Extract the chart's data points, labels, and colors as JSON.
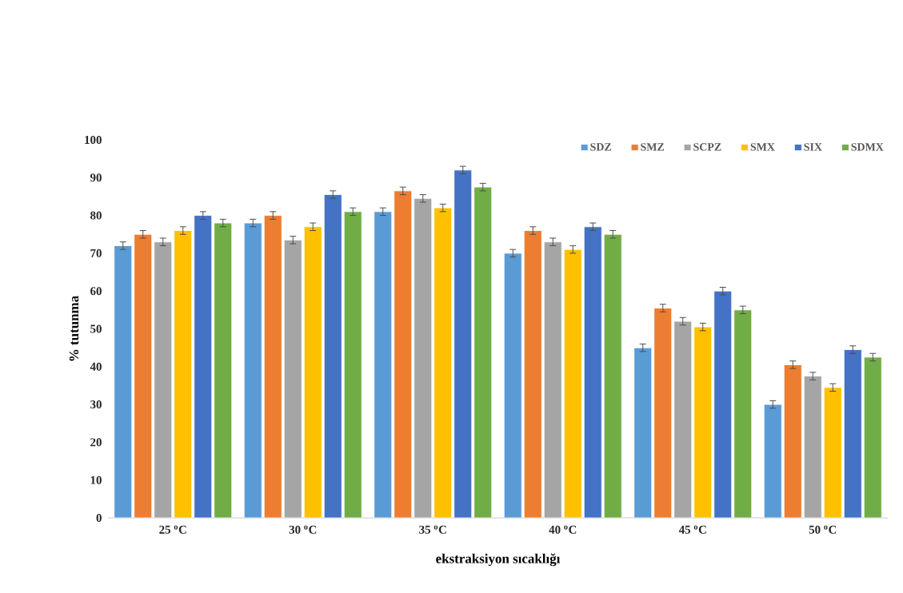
{
  "chart_data": {
    "type": "bar",
    "xlabel": "ekstraksiyon sıcaklığı",
    "ylabel": "% tutunma",
    "categories": [
      "25 $^{o}$C",
      "30 $^{o}$C",
      "35 $^{o}$C",
      "40 $^{o}$C",
      "45 $^{o}$C",
      "50 $^{o}$C"
    ],
    "series": [
      {
        "name": "SDZ",
        "color": "#5b9bd5",
        "values": [
          72,
          78,
          81,
          70,
          45,
          30
        ],
        "errors": [
          1,
          1,
          1,
          1,
          1,
          1
        ]
      },
      {
        "name": "SMZ",
        "color": "#ed7d31",
        "values": [
          75,
          80,
          86.5,
          76,
          55.5,
          40.5
        ],
        "errors": [
          1,
          1,
          1,
          1,
          1,
          1
        ]
      },
      {
        "name": "SCPZ",
        "color": "#a5a5a5",
        "values": [
          73,
          73.5,
          84.5,
          73,
          52,
          37.5
        ],
        "errors": [
          1,
          1,
          1,
          1,
          1,
          1
        ]
      },
      {
        "name": "SMX",
        "color": "#ffc000",
        "values": [
          76,
          77,
          82,
          71,
          50.5,
          34.5
        ],
        "errors": [
          1,
          1,
          1,
          1,
          1,
          1
        ]
      },
      {
        "name": "SIX",
        "color": "#4472c4",
        "values": [
          80,
          85.5,
          92,
          77,
          60,
          44.5
        ],
        "errors": [
          1,
          1,
          1,
          1,
          1,
          1
        ]
      },
      {
        "name": "SDMX",
        "color": "#70ad47",
        "values": [
          78,
          81,
          87.5,
          75,
          55,
          42.5
        ],
        "errors": [
          1,
          1,
          1,
          1,
          1,
          1
        ]
      }
    ],
    "ylim": [
      0,
      100
    ],
    "yticks": [
      0,
      10,
      20,
      30,
      40,
      50,
      60,
      70,
      80,
      90,
      100
    ],
    "grid": false,
    "legend": "top right"
  }
}
